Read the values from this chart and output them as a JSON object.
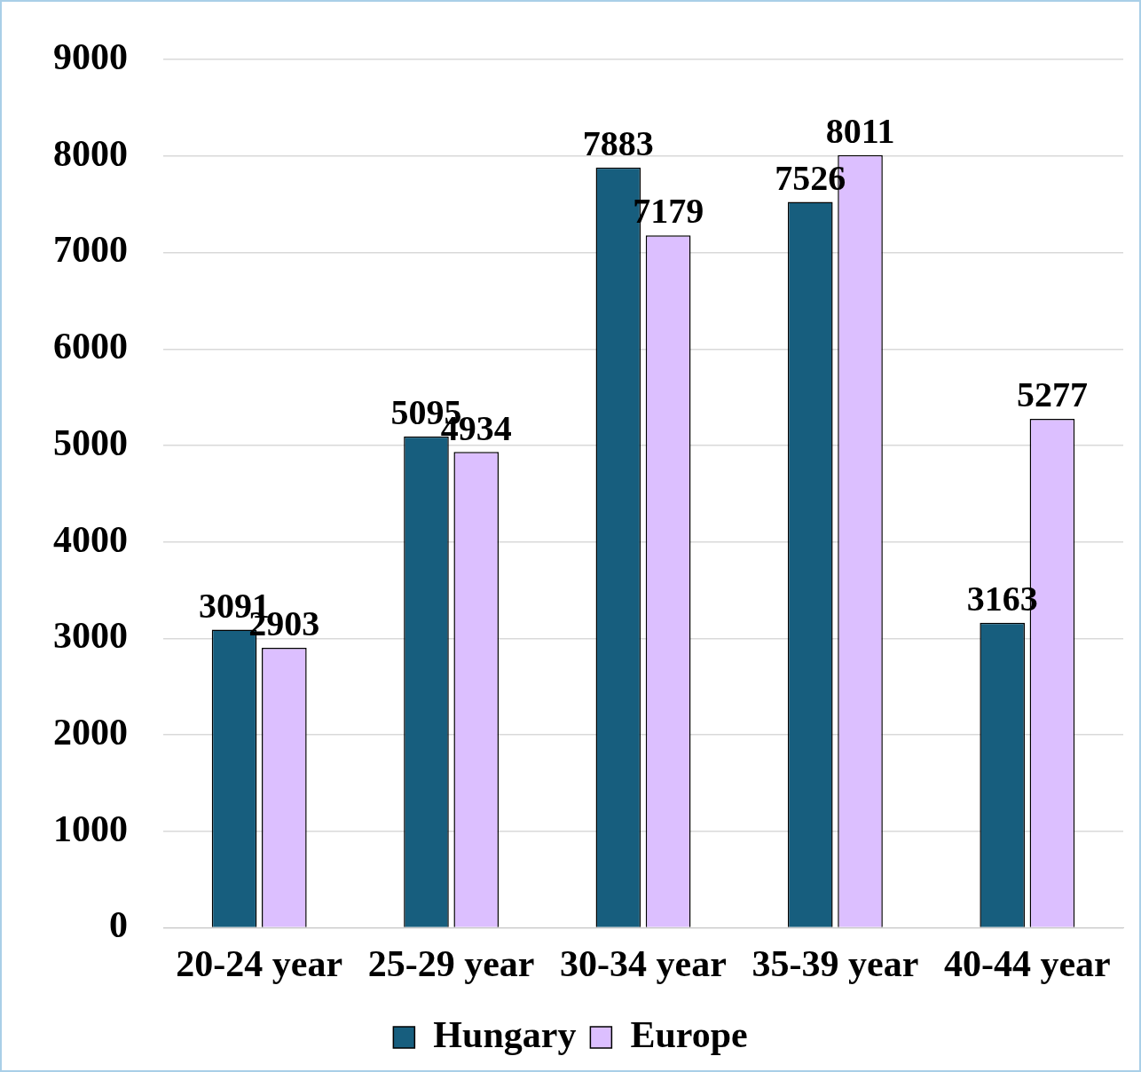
{
  "chart_data": {
    "type": "bar",
    "categories": [
      "20-24 year",
      "25-29 year",
      "30-34 year",
      "35-39 year",
      "40-44 year"
    ],
    "series": [
      {
        "name": "Hungary",
        "color": "#175e7e",
        "values": [
          3091,
          5095,
          7883,
          7526,
          3163
        ]
      },
      {
        "name": "Europe",
        "color": "#dcbfff",
        "values": [
          2903,
          4934,
          7179,
          8011,
          5277
        ]
      }
    ],
    "ylim": [
      0,
      9000
    ],
    "yticks": [
      0,
      1000,
      2000,
      3000,
      4000,
      5000,
      6000,
      7000,
      8000,
      9000
    ],
    "grid": "y",
    "legend": "bottom",
    "data_labels": true
  }
}
